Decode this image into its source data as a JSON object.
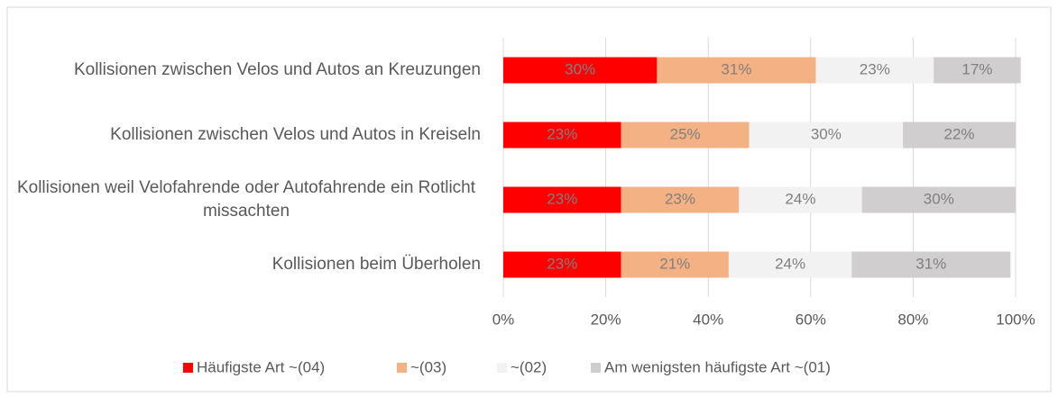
{
  "chart_data": {
    "type": "stacked-barh",
    "categories": [
      "Kollisionen zwischen Velos und Autos an Kreuzungen",
      "Kollisionen zwischen Velos und Autos in Kreiseln",
      "Kollisionen weil Velofahrende oder Autofahrende ein Rotlicht missachten",
      "Kollisionen beim Überholen"
    ],
    "series": [
      {
        "name": "Häufigste Art ~(04)",
        "color": "#ff0000",
        "values": [
          30,
          23,
          23,
          23
        ],
        "value_labels": [
          "30%",
          "23%",
          "23%",
          "23%"
        ]
      },
      {
        "name": "~(03)",
        "color": "#f4b183",
        "values": [
          31,
          25,
          23,
          21
        ],
        "value_labels": [
          "31%",
          "25%",
          "23%",
          "21%"
        ]
      },
      {
        "name": "~(02)",
        "color": "#f2f2f2",
        "values": [
          23,
          30,
          24,
          24
        ],
        "value_labels": [
          "23%",
          "30%",
          "24%",
          "24%"
        ]
      },
      {
        "name": "Am wenigsten häufigste Art ~(01)",
        "color": "#d0cece",
        "values": [
          17,
          22,
          30,
          31
        ],
        "value_labels": [
          "17%",
          "22%",
          "30%",
          "31%"
        ]
      }
    ],
    "xlim": [
      0,
      100
    ],
    "xticks": [
      {
        "value": 0,
        "label": "0%"
      },
      {
        "value": 20,
        "label": "20%"
      },
      {
        "value": 40,
        "label": "40%"
      },
      {
        "value": 60,
        "label": "60%"
      },
      {
        "value": 80,
        "label": "80%"
      },
      {
        "value": 100,
        "label": "100%"
      }
    ],
    "grid": true,
    "legend": "bottom"
  }
}
